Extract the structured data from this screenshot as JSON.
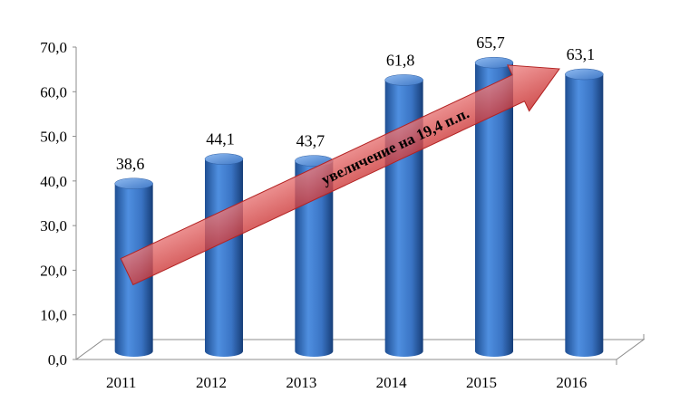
{
  "chart_data": {
    "type": "bar",
    "categories": [
      "2011",
      "2012",
      "2013",
      "2014",
      "2015",
      "2016"
    ],
    "values": [
      38.6,
      44.1,
      43.7,
      61.8,
      65.7,
      63.1
    ],
    "value_labels": [
      "38,6",
      "44,1",
      "43,7",
      "61,8",
      "65,7",
      "63,1"
    ],
    "ylim": [
      0,
      70
    ],
    "y_ticks": [
      "0,0",
      "10,0",
      "20,0",
      "30,0",
      "40,0",
      "50,0",
      "60,0",
      "70,0"
    ],
    "grid": false,
    "bar_shape": "cylinder",
    "bar_color": "#3a78c9",
    "annotation": {
      "text": "увеличение на 19,4 п.п.",
      "type": "arrow",
      "color": "#e24a4a"
    }
  }
}
